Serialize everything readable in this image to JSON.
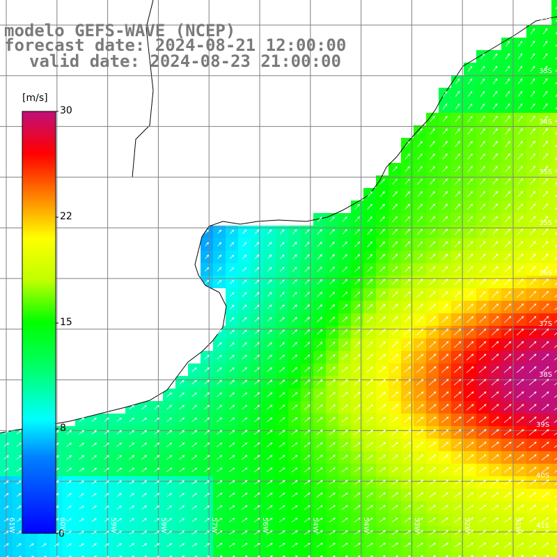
{
  "title": {
    "line1": "modelo GEFS-WAVE (NCEP)",
    "line2": "forecast date: 2024-08-21 12:00:00",
    "line3": "valid date: 2024-08-23 21:00:00"
  },
  "colorbar": {
    "unit": "[m/s]",
    "ticks": [
      "30",
      "22",
      "15",
      "8",
      "0"
    ],
    "min": 0,
    "max": 30
  },
  "lat_labels": [
    "32S",
    "33S",
    "34S",
    "35S",
    "36S",
    "37S",
    "38S",
    "39S",
    "40S",
    "41S"
  ],
  "lon_labels": [
    "61W",
    "60W",
    "59W",
    "58W",
    "57W",
    "56W",
    "55W",
    "54W",
    "53W",
    "52W",
    "51W"
  ],
  "colors": {
    "land": "#ffffff",
    "coastline": "#000000",
    "grid": "#7f7f7f",
    "arrow": "#ffffff",
    "title": "#7a7a7a"
  }
}
